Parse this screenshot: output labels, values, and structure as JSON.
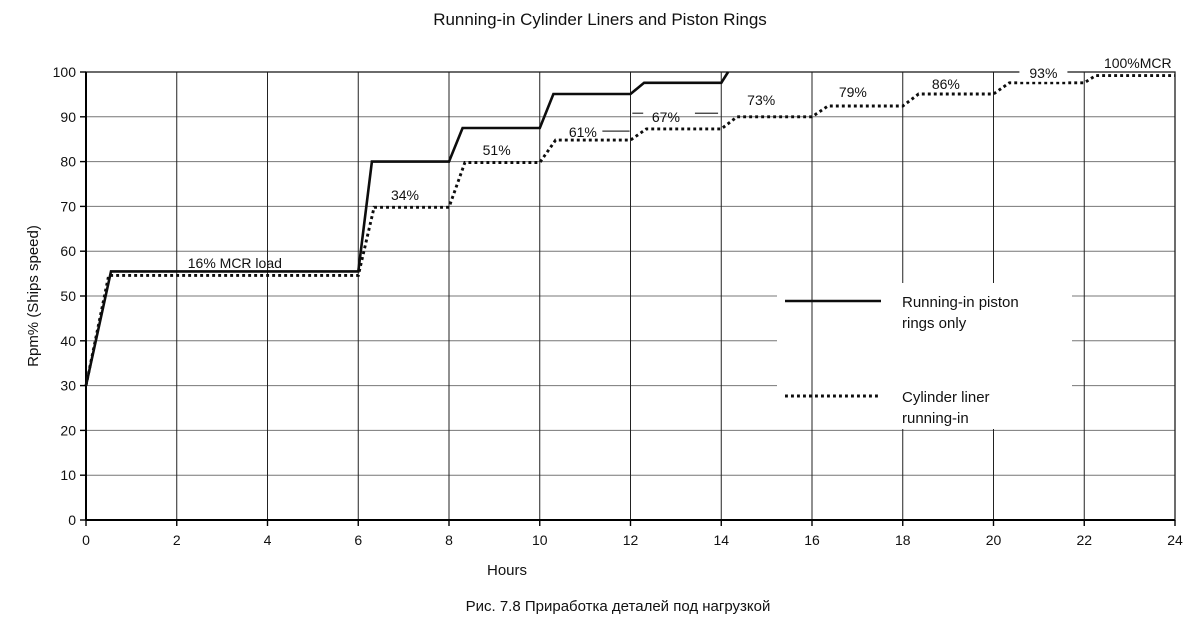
{
  "title": "Running-in Cylinder Liners and Piston Rings",
  "caption": "Рис. 7.8 Приработка деталей под нагрузкой",
  "colors": {
    "background": "#ffffff",
    "line": "#0d0d0d",
    "grid_horizontal": "#777777",
    "grid_vertical": "#222222",
    "text": "#111111"
  },
  "chart_data": {
    "type": "line",
    "title": "Running-in Cylinder Liners and Piston Rings",
    "xlabel": "Hours",
    "ylabel": "Rpm% (Ships speed)",
    "xlim": [
      0,
      24
    ],
    "ylim": [
      0,
      100
    ],
    "xticks": [
      0,
      2,
      4,
      6,
      8,
      10,
      12,
      14,
      16,
      18,
      20,
      22,
      24
    ],
    "yticks": [
      0,
      10,
      20,
      30,
      40,
      50,
      60,
      70,
      80,
      90,
      100
    ],
    "grid": true,
    "series": [
      {
        "name": "Running-in piston rings only",
        "style": "solid",
        "points": [
          [
            0,
            30
          ],
          [
            0.55,
            55.5
          ],
          [
            6,
            55.5
          ],
          [
            6.3,
            80
          ],
          [
            8,
            80
          ],
          [
            8.3,
            87.5
          ],
          [
            10,
            87.5
          ],
          [
            10.3,
            95.1
          ],
          [
            12,
            95.1
          ],
          [
            12.3,
            97.6
          ],
          [
            14,
            97.6
          ],
          [
            14.15,
            100
          ]
        ]
      },
      {
        "name": "Cylinder liner running-in",
        "style": "dotted",
        "points": [
          [
            0,
            30
          ],
          [
            0.5,
            54.6
          ],
          [
            6,
            54.6
          ],
          [
            6.35,
            69.8
          ],
          [
            8,
            69.8
          ],
          [
            8.35,
            79.8
          ],
          [
            10,
            79.8
          ],
          [
            10.35,
            84.8
          ],
          [
            12,
            84.8
          ],
          [
            12.35,
            87.3
          ],
          [
            14,
            87.3
          ],
          [
            14.35,
            90
          ],
          [
            16,
            90
          ],
          [
            16.35,
            92.4
          ],
          [
            18,
            92.4
          ],
          [
            18.35,
            95.1
          ],
          [
            20,
            95.1
          ],
          [
            20.35,
            97.6
          ],
          [
            22,
            97.6
          ],
          [
            22.25,
            99.2
          ],
          [
            24,
            99.2
          ]
        ]
      }
    ],
    "annotations": [
      {
        "text": "16% MCR load",
        "h": 3.28,
        "v": 56.3,
        "box": false
      },
      {
        "text": "34%",
        "h": 7.03,
        "v": 71.4,
        "box": false
      },
      {
        "text": "51%",
        "h": 9.05,
        "v": 81.5,
        "box": false
      },
      {
        "text": "61%",
        "h": 10.95,
        "v": 85.5,
        "box": false
      },
      {
        "text": "67%",
        "h": 12.78,
        "v": 88.8,
        "box": false
      },
      {
        "text": "73%",
        "h": 14.88,
        "v": 92.6,
        "box": false
      },
      {
        "text": "79%",
        "h": 16.9,
        "v": 94.4,
        "box": false
      },
      {
        "text": "86%",
        "h": 18.95,
        "v": 96.2,
        "box": false
      },
      {
        "text": "93%",
        "h": 21.1,
        "v": 98.7,
        "box": true
      },
      {
        "text": "100%MCR",
        "h": 23.18,
        "v": 100.9,
        "box": false
      }
    ],
    "leader_lines": [
      {
        "h1": 11.38,
        "h2": 11.98,
        "v": 86.8
      },
      {
        "h1": 12.04,
        "h2": 12.28,
        "v": 90.8
      },
      {
        "h1": 13.42,
        "h2": 13.93,
        "v": 90.8
      }
    ],
    "legend": {
      "position": "inside-right",
      "items": [
        {
          "line1": "Running-in piston",
          "line2": "rings only",
          "style": "solid"
        },
        {
          "line1": "Cylinder liner",
          "line2": "running-in",
          "style": "dotted"
        }
      ]
    }
  }
}
